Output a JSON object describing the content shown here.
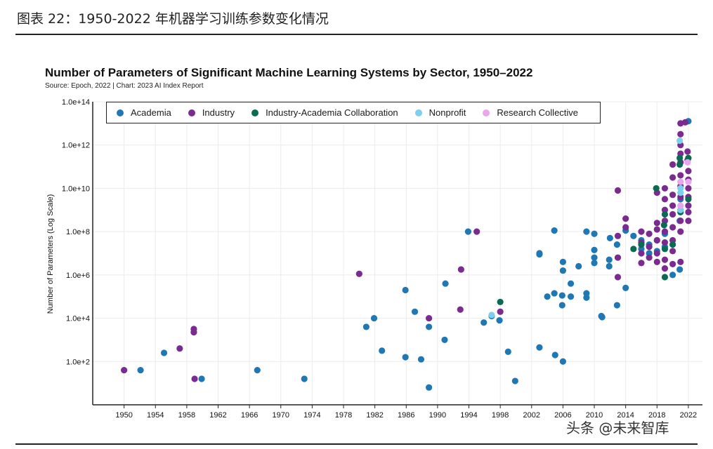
{
  "figure_caption": "图表 22：1950-2022 年机器学习训练参数变化情况",
  "watermark": "头条 @未来智库",
  "chart_data": {
    "type": "scatter",
    "title": "Number of Parameters of Significant Machine Learning Systems by Sector, 1950–2022",
    "subtitle": "Source: Epoch, 2022 | Chart: 2023 AI Index Report",
    "xlabel": "",
    "ylabel": "Number of Parameters (Log Scale)",
    "yscale": "log",
    "xlim": [
      1946,
      2023.8
    ],
    "ylim_log10": [
      0,
      14
    ],
    "x_ticks": [
      "1950",
      "1954",
      "1958",
      "1962",
      "1966",
      "1970",
      "1974",
      "1978",
      "1982",
      "1986",
      "1990",
      "1994",
      "1998",
      "2002",
      "2006",
      "2010",
      "2014",
      "2018",
      "2022"
    ],
    "y_ticks": [
      "1.0e+2",
      "1.0e+4",
      "1.0e+6",
      "1.0e+8",
      "1.0e+10",
      "1.0e+12",
      "1.0e+14"
    ],
    "grid": true,
    "legend_position": "top",
    "colors": {
      "Academia": "#1f77b4",
      "Industry": "#7b2a8f",
      "Industry-Academia Collaboration": "#0a6b52",
      "Nonprofit": "#7ecfee",
      "Research Collective": "#e9a6ee"
    },
    "series": [
      {
        "name": "Academia",
        "points": [
          [
            1952.1,
            1.6
          ],
          [
            1955.1,
            2.4
          ],
          [
            1959.9,
            1.2
          ],
          [
            1967.0,
            1.6
          ],
          [
            1973.0,
            1.2
          ],
          [
            1980.9,
            3.6
          ],
          [
            1981.9,
            4.0
          ],
          [
            1982.9,
            2.5
          ],
          [
            1985.9,
            5.3
          ],
          [
            1985.9,
            2.2
          ],
          [
            1987.1,
            4.3
          ],
          [
            1987.9,
            2.1
          ],
          [
            1988.9,
            3.6
          ],
          [
            1988.9,
            0.8
          ],
          [
            1990.9,
            3.0
          ],
          [
            1991.0,
            5.6
          ],
          [
            1993.9,
            8.0
          ],
          [
            1995.9,
            3.8
          ],
          [
            1996.9,
            4.1
          ],
          [
            1997.9,
            3.9
          ],
          [
            1999.0,
            2.45
          ],
          [
            1999.9,
            1.1
          ],
          [
            2003.0,
            2.65
          ],
          [
            2003.0,
            7.0
          ],
          [
            2003.0,
            6.95
          ],
          [
            2004.0,
            5.0
          ],
          [
            2004.9,
            5.15
          ],
          [
            2004.9,
            8.05
          ],
          [
            2005.0,
            2.3
          ],
          [
            2006.0,
            6.6
          ],
          [
            2006.0,
            6.2
          ],
          [
            2005.9,
            5.05
          ],
          [
            2005.9,
            4.6
          ],
          [
            2006.0,
            2.0
          ],
          [
            2007.0,
            5.6
          ],
          [
            2007.0,
            5.0
          ],
          [
            2008.0,
            6.4
          ],
          [
            2009.0,
            5.15
          ],
          [
            2009.0,
            4.95
          ],
          [
            2009.0,
            8.0
          ],
          [
            2010.0,
            7.15
          ],
          [
            2010.0,
            6.8
          ],
          [
            2010.0,
            6.55
          ],
          [
            2010.0,
            7.9
          ],
          [
            2010.9,
            4.1
          ],
          [
            2011.0,
            4.05
          ],
          [
            2011.9,
            6.7
          ],
          [
            2011.9,
            6.4
          ],
          [
            2012.0,
            7.7
          ],
          [
            2012.9,
            4.6
          ],
          [
            2012.9,
            7.4
          ],
          [
            2014.0,
            5.4
          ],
          [
            2014.0,
            8.05
          ],
          [
            2015.0,
            7.8
          ],
          [
            2016.0,
            7.6
          ],
          [
            2016.0,
            7.2
          ],
          [
            2017.0,
            7.4
          ],
          [
            2017.0,
            7.0
          ],
          [
            2018.0,
            7.6
          ],
          [
            2018.0,
            7.1
          ],
          [
            2019.0,
            7.3
          ],
          [
            2019.0,
            7.9
          ],
          [
            2020.0,
            6.0
          ],
          [
            2020.9,
            6.25
          ],
          [
            2020.9,
            8.5
          ],
          [
            2021.0,
            9.5
          ],
          [
            2022.0,
            13.1
          ]
        ]
      },
      {
        "name": "Industry",
        "points": [
          [
            1950.0,
            1.6
          ],
          [
            1957.1,
            2.6
          ],
          [
            1958.9,
            3.5
          ],
          [
            1958.9,
            3.35
          ],
          [
            1959.0,
            1.2
          ],
          [
            1980.0,
            6.05
          ],
          [
            1988.9,
            4.0
          ],
          [
            1993.0,
            6.25
          ],
          [
            1992.9,
            4.4
          ],
          [
            1995.0,
            8.0
          ],
          [
            1998.0,
            4.3
          ],
          [
            2013.0,
            9.9
          ],
          [
            2013.0,
            7.8
          ],
          [
            2013.0,
            6.8
          ],
          [
            2013.0,
            5.9
          ],
          [
            2014.0,
            8.6
          ],
          [
            2014.0,
            8.2
          ],
          [
            2016.0,
            8.0
          ],
          [
            2016.0,
            7.5
          ],
          [
            2016.0,
            7.0
          ],
          [
            2016.0,
            6.55
          ],
          [
            2017.0,
            7.9
          ],
          [
            2017.0,
            7.3
          ],
          [
            2017.0,
            6.8
          ],
          [
            2018.0,
            8.4
          ],
          [
            2018.0,
            8.1
          ],
          [
            2018.0,
            7.6
          ],
          [
            2018.0,
            7.0
          ],
          [
            2018.0,
            6.6
          ],
          [
            2018.0,
            9.8
          ],
          [
            2019.0,
            10.0
          ],
          [
            2019.0,
            9.5
          ],
          [
            2019.0,
            9.0
          ],
          [
            2019.0,
            8.5
          ],
          [
            2019.0,
            8.0
          ],
          [
            2019.0,
            7.5
          ],
          [
            2019.0,
            6.7
          ],
          [
            2019.0,
            6.3
          ],
          [
            2020.0,
            11.1
          ],
          [
            2020.0,
            10.5
          ],
          [
            2020.0,
            9.7
          ],
          [
            2020.0,
            9.2
          ],
          [
            2020.0,
            8.8
          ],
          [
            2020.0,
            8.2
          ],
          [
            2020.0,
            7.6
          ],
          [
            2020.0,
            7.1
          ],
          [
            2020.0,
            6.5
          ],
          [
            2021.0,
            13.0
          ],
          [
            2021.0,
            12.5
          ],
          [
            2021.0,
            12.0
          ],
          [
            2021.0,
            11.6
          ],
          [
            2021.0,
            11.2
          ],
          [
            2021.0,
            10.6
          ],
          [
            2021.0,
            10.1
          ],
          [
            2021.0,
            9.6
          ],
          [
            2021.0,
            9.0
          ],
          [
            2021.0,
            8.5
          ],
          [
            2021.0,
            8.0
          ],
          [
            2021.0,
            6.6
          ],
          [
            2021.9,
            11.7
          ],
          [
            2021.9,
            11.3
          ],
          [
            2022.0,
            10.8
          ],
          [
            2022.0,
            10.4
          ],
          [
            2022.0,
            10.0
          ],
          [
            2022.0,
            9.6
          ],
          [
            2022.0,
            9.2
          ],
          [
            2022.0,
            8.9
          ],
          [
            2022.0,
            8.5
          ],
          [
            2021.6,
            13.05
          ]
        ]
      },
      {
        "name": "Industry-Academia Collaboration",
        "points": [
          [
            1998.0,
            4.75
          ],
          [
            2015.0,
            7.2
          ],
          [
            2016.0,
            7.4
          ],
          [
            2017.9,
            10.0
          ],
          [
            2018.9,
            8.3
          ],
          [
            2019.0,
            5.9
          ],
          [
            2019.0,
            7.2
          ],
          [
            2019.0,
            8.8
          ],
          [
            2020.0,
            7.4
          ],
          [
            2020.9,
            11.4
          ],
          [
            2020.9,
            11.1
          ],
          [
            2021.0,
            8.9
          ],
          [
            2022.0,
            11.4
          ],
          [
            2022.0,
            9.5
          ]
        ]
      },
      {
        "name": "Nonprofit",
        "points": [
          [
            1996.9,
            4.15
          ],
          [
            2020.9,
            12.2
          ],
          [
            2021.0,
            10.0
          ],
          [
            2021.0,
            9.8
          ],
          [
            2021.0,
            9.0
          ]
        ]
      },
      {
        "name": "Research Collective",
        "points": [
          [
            2021.0,
            10.3
          ],
          [
            2021.0,
            9.2
          ],
          [
            2021.9,
            11.2
          ],
          [
            2022.0,
            10.3
          ]
        ]
      }
    ]
  }
}
